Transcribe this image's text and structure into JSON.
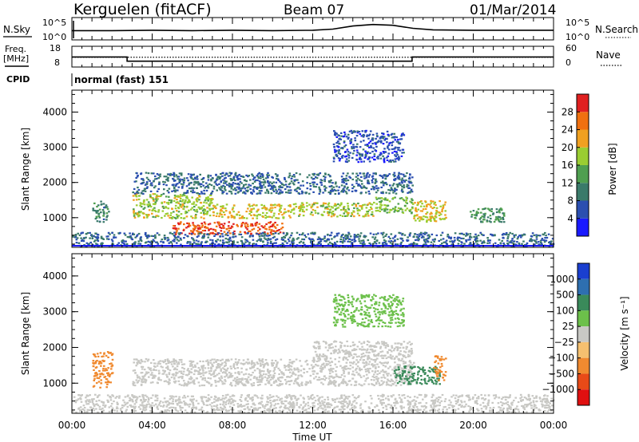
{
  "header": {
    "station": "Kerguelen (fitACF)",
    "beam": "Beam 07",
    "date": "01/Mar/2014"
  },
  "noise_panel": {
    "left_label": "N.Sky",
    "right_label": "N.Search",
    "left_ticks": [
      "10^5",
      "10^0"
    ],
    "right_ticks": [
      "10^5",
      "10^0"
    ]
  },
  "freq_panel": {
    "left_label_1": "Freq.",
    "left_label_2": "[MHz]",
    "right_label": "Nave",
    "left_ticks": [
      "18",
      "8"
    ],
    "right_ticks": [
      "60",
      "0"
    ]
  },
  "cpid": {
    "label": "CPID",
    "mode": "normal (fast) 151"
  },
  "x_axis": {
    "label": "Time UT",
    "ticks": [
      "00:00",
      "04:00",
      "08:00",
      "12:00",
      "16:00",
      "20:00",
      "00:00"
    ]
  },
  "y_axis": {
    "label": "Slant Range [km]",
    "ticks": [
      "1000",
      "2000",
      "3000",
      "4000"
    ]
  },
  "power_colorbar": {
    "label": "Power [dB]",
    "ticks": [
      "4",
      "8",
      "12",
      "16",
      "20",
      "24",
      "28"
    ],
    "colors": [
      "#1a1aff",
      "#2b4fb0",
      "#3a7a6a",
      "#4f9f50",
      "#9acd32",
      "#f0a020",
      "#f07010",
      "#e02020"
    ]
  },
  "velocity_colorbar": {
    "label": "Velocity [m s⁻¹]",
    "ticks": [
      "1000",
      "500",
      "100",
      "25",
      "−25",
      "−100",
      "−500",
      "−1000"
    ],
    "colors": [
      "#1a3fd0",
      "#2e6fb0",
      "#3a8a5a",
      "#6cc04a",
      "#c8c8c4",
      "#f5c070",
      "#f08a30",
      "#e84a18",
      "#e01010"
    ]
  },
  "chart_data": {
    "type": "heatmap",
    "x_range_hours": [
      0,
      24
    ],
    "y_range_km": [
      180,
      4600
    ],
    "noise_sky": {
      "x": [
        0.0,
        2.0,
        4.0,
        6.0,
        8.0,
        10.0,
        12.0,
        13.0,
        14.0,
        15.0,
        16.0,
        17.0,
        18.0,
        20.0,
        22.0,
        24.0
      ],
      "value": [
        2.0,
        2.0,
        2.1,
        2.0,
        2.1,
        2.0,
        2.1,
        2.4,
        3.2,
        3.6,
        3.4,
        2.6,
        2.2,
        2.1,
        2.1,
        2.1
      ]
    },
    "frequency_mhz": {
      "x": [
        0.0,
        2.75,
        2.75,
        16.95,
        16.95,
        24.0
      ],
      "value": [
        12.8,
        12.8,
        10.4,
        10.4,
        12.8,
        12.8
      ]
    },
    "nave": {
      "x": [
        0.0,
        24.0
      ],
      "value": [
        28,
        28
      ]
    },
    "power_regions": [
      {
        "t": [
          1.0,
          1.8
        ],
        "r": [
          900,
          1500
        ],
        "dB": 10
      },
      {
        "t": [
          3.0,
          7.0
        ],
        "r": [
          1000,
          1700
        ],
        "dB": 18
      },
      {
        "t": [
          7.0,
          11.0
        ],
        "r": [
          1000,
          1400
        ],
        "dB": 20
      },
      {
        "t": [
          11.0,
          15.0
        ],
        "r": [
          1050,
          1450
        ],
        "dB": 18
      },
      {
        "t": [
          15.0,
          17.0
        ],
        "r": [
          1150,
          1600
        ],
        "dB": 16
      },
      {
        "t": [
          17.0,
          18.6
        ],
        "r": [
          900,
          1500
        ],
        "dB": 20
      },
      {
        "t": [
          5.0,
          10.5
        ],
        "r": [
          550,
          900
        ],
        "dB": 28
      },
      {
        "t": [
          3.0,
          17.0
        ],
        "r": [
          1700,
          2300
        ],
        "dB": 8
      },
      {
        "t": [
          13.0,
          16.5
        ],
        "r": [
          2600,
          3500
        ],
        "dB": 6
      },
      {
        "t": [
          19.8,
          21.5
        ],
        "r": [
          900,
          1300
        ],
        "dB": 12
      },
      {
        "t": [
          0.0,
          24.0
        ],
        "r": [
          200,
          600
        ],
        "dB": 8
      }
    ],
    "velocity_regions": [
      {
        "t": [
          1.0,
          2.0
        ],
        "r": [
          900,
          1900
        ],
        "ms": -300
      },
      {
        "t": [
          3.0,
          17.0
        ],
        "r": [
          950,
          1700
        ],
        "ms": 0
      },
      {
        "t": [
          16.0,
          18.3
        ],
        "r": [
          1000,
          1500
        ],
        "ms": 150
      },
      {
        "t": [
          18.0,
          18.6
        ],
        "r": [
          1100,
          1800
        ],
        "ms": -400
      },
      {
        "t": [
          12.0,
          17.0
        ],
        "r": [
          1700,
          2200
        ],
        "ms": 0
      },
      {
        "t": [
          13.0,
          16.5
        ],
        "r": [
          2600,
          3500
        ],
        "ms": 50
      },
      {
        "t": [
          0.0,
          24.0
        ],
        "r": [
          200,
          700
        ],
        "ms": 0
      }
    ]
  }
}
